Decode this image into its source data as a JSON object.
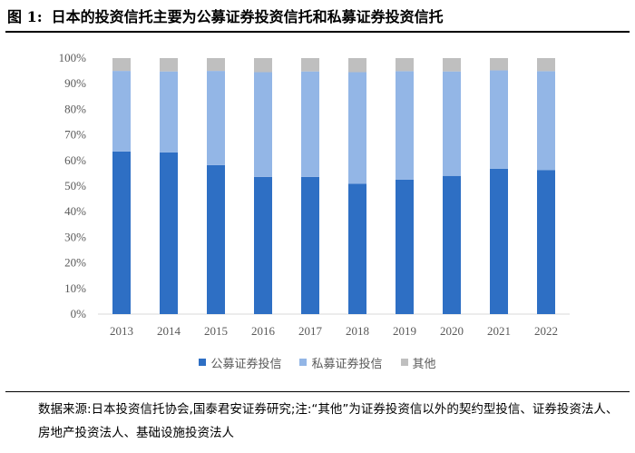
{
  "title": {
    "label": "图 1:",
    "text": "日本的投资信托主要为公募证券投资信托和私募证券投资信托"
  },
  "note": "数据来源:日本投资信托协会,国泰君安证券研究;注:“其他”为证券投资信以外的契约型投信、证券投资法人、房地产投资法人、基础设施投资法人",
  "chart_data": {
    "type": "bar",
    "stacked": true,
    "categories": [
      "2013",
      "2014",
      "2015",
      "2016",
      "2017",
      "2018",
      "2019",
      "2020",
      "2021",
      "2022"
    ],
    "series": [
      {
        "name": "公募证券投信",
        "color": "#2e6fc4",
        "values": [
          63.5,
          63.2,
          58.2,
          53.6,
          53.6,
          50.9,
          52.5,
          54.0,
          56.8,
          56.3
        ]
      },
      {
        "name": "私募证券投信",
        "color": "#93b6e6",
        "values": [
          31.5,
          31.6,
          36.8,
          40.9,
          41.2,
          43.6,
          42.4,
          40.8,
          38.4,
          38.6
        ]
      },
      {
        "name": "其他",
        "color": "#bfbfbf",
        "values": [
          5.0,
          5.2,
          5.0,
          5.5,
          5.2,
          5.5,
          5.1,
          5.2,
          4.8,
          5.1
        ]
      }
    ],
    "ylim": [
      0,
      100
    ],
    "yticks": [
      "0%",
      "10%",
      "20%",
      "30%",
      "40%",
      "50%",
      "60%",
      "70%",
      "80%",
      "90%",
      "100%"
    ],
    "grid": false,
    "legend_position": "bottom"
  }
}
